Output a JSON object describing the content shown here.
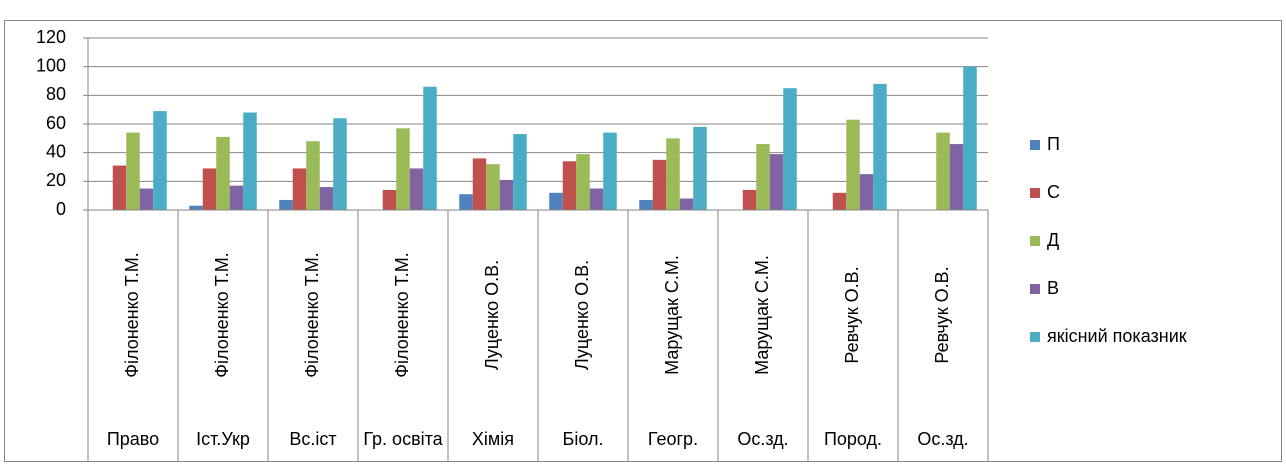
{
  "chart_data": {
    "type": "bar",
    "categories": [
      "Філоненко Т.М.",
      "Філоненко Т.М.",
      "Філоненко Т.М.",
      "Філоненко Т.М.",
      "Луценко О.В.",
      "Луценко О.В.",
      "Марущак С.М.",
      "Марущак С.М.",
      "Ревчук О.В.",
      "Ревчук О.В."
    ],
    "category_groups": [
      "Право",
      "Іст.Укр",
      "Вс.іст",
      "Гр. освіта",
      "Хімія",
      "Біол.",
      "Геогр.",
      "Ос.зд.",
      "Пород.",
      "Ос.зд."
    ],
    "series": [
      {
        "name": "П",
        "color": "#4f81bd",
        "values": [
          0,
          3,
          7,
          0,
          11,
          12,
          7,
          0,
          0,
          0
        ]
      },
      {
        "name": "С",
        "color": "#c0504d",
        "values": [
          31,
          29,
          29,
          14,
          36,
          34,
          35,
          14,
          12,
          0
        ]
      },
      {
        "name": "Д",
        "color": "#9bbb59",
        "values": [
          54,
          51,
          48,
          57,
          32,
          39,
          50,
          46,
          63,
          54
        ]
      },
      {
        "name": "В",
        "color": "#8064a2",
        "values": [
          15,
          17,
          16,
          29,
          21,
          15,
          8,
          39,
          25,
          46
        ]
      },
      {
        "name": "якісний показник",
        "color": "#4bacc6",
        "values": [
          69,
          68,
          64,
          86,
          53,
          54,
          58,
          85,
          88,
          100
        ]
      }
    ],
    "ylim": [
      0,
      120
    ],
    "yticks": [
      0,
      20,
      40,
      60,
      80,
      100,
      120
    ],
    "grid": true,
    "legend": "right"
  }
}
